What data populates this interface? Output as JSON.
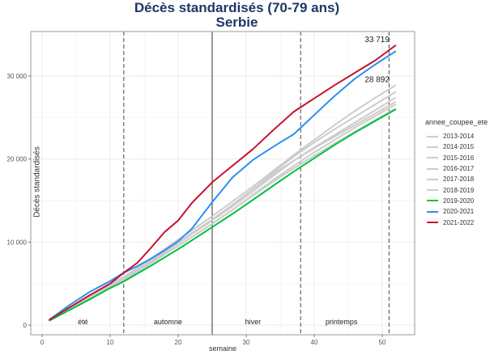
{
  "title": "Décès standardisés (70-79 ans)",
  "subtitle": "Serbie",
  "chart_data": {
    "type": "line",
    "title": "Décès standardisés (70-79 ans)",
    "subtitle": "Serbie",
    "xlabel": "semaine",
    "ylabel": "Décès standardisés",
    "xlim": [
      -1,
      55
    ],
    "ylim": [
      -1400,
      35000
    ],
    "x_ticks": [
      0,
      10,
      20,
      30,
      40,
      50
    ],
    "x_tick_labels": [
      "0",
      "10",
      "20",
      "30",
      "40",
      "50"
    ],
    "y_ticks": [
      0,
      10000,
      20000,
      30000
    ],
    "y_tick_labels": [
      "0",
      "10 000",
      "20 000",
      "30 000"
    ],
    "grid": true,
    "legend_position": "right",
    "legend_title": "annee_coupee_ete",
    "vertical_lines": [
      {
        "x": 12,
        "style": "dashed"
      },
      {
        "x": 25,
        "style": "solid"
      },
      {
        "x": 38,
        "style": "dashed"
      },
      {
        "x": 51,
        "style": "dashed"
      }
    ],
    "season_labels": [
      {
        "text": "été",
        "x": 6
      },
      {
        "text": "automne",
        "x": 18.5
      },
      {
        "text": "hiver",
        "x": 31
      },
      {
        "text": "printemps",
        "x": 44
      }
    ],
    "annotations": [
      {
        "text": "33 719",
        "x": 49,
        "y": 33719
      },
      {
        "text": "28 892",
        "x": 49,
        "y": 28892
      }
    ],
    "x": [
      1,
      4,
      7,
      10,
      12,
      14,
      16,
      18,
      20,
      22,
      25,
      28,
      31,
      34,
      37,
      40,
      43,
      46,
      49,
      52
    ],
    "series": [
      {
        "name": "2013-2014",
        "color": "#cccccc",
        "values": [
          550,
          2000,
          3500,
          5000,
          5800,
          6900,
          8000,
          9150,
          10300,
          11400,
          13100,
          14900,
          16700,
          18600,
          20500,
          22300,
          24100,
          25800,
          27400,
          28900
        ]
      },
      {
        "name": "2014-2015",
        "color": "#cccccc",
        "values": [
          550,
          1950,
          3400,
          4850,
          5650,
          6700,
          7750,
          8850,
          9950,
          11050,
          12700,
          14500,
          16400,
          18400,
          20300,
          22000,
          23600,
          25100,
          26600,
          28100
        ]
      },
      {
        "name": "2015-2016",
        "color": "#cccccc",
        "values": [
          550,
          1950,
          3350,
          4800,
          5600,
          6650,
          7700,
          8750,
          9850,
          10950,
          12600,
          14300,
          16100,
          18000,
          19800,
          21400,
          22900,
          24400,
          25900,
          27400
        ]
      },
      {
        "name": "2016-2017",
        "color": "#cccccc",
        "values": [
          550,
          1900,
          3300,
          4750,
          5550,
          6600,
          7650,
          8750,
          9850,
          11000,
          12700,
          14500,
          16400,
          18200,
          19800,
          21300,
          22700,
          24100,
          25500,
          26900
        ]
      },
      {
        "name": "2017-2018",
        "color": "#cccccc",
        "values": [
          550,
          1900,
          3250,
          4650,
          5450,
          6450,
          7450,
          8500,
          9550,
          10600,
          12200,
          13900,
          15700,
          17500,
          19200,
          20800,
          22300,
          23800,
          25200,
          26600
        ]
      },
      {
        "name": "2018-2019",
        "color": "#cccccc",
        "values": [
          550,
          1900,
          3250,
          4650,
          5450,
          6450,
          7450,
          8500,
          9550,
          10600,
          12200,
          13900,
          15600,
          17300,
          18900,
          20400,
          21900,
          23300,
          24700,
          26100
        ]
      },
      {
        "name": "2019-2020",
        "color": "#00c040",
        "values": [
          500,
          1800,
          3100,
          4450,
          5250,
          6200,
          7150,
          8150,
          9150,
          10200,
          11800,
          13400,
          15100,
          16800,
          18500,
          20100,
          21700,
          23200,
          24600,
          26000
        ]
      },
      {
        "name": "2020-2021",
        "color": "#2a8ff0",
        "values": [
          600,
          2400,
          4000,
          5300,
          6300,
          7100,
          8000,
          9000,
          10100,
          11600,
          14800,
          17800,
          19900,
          21500,
          23000,
          25300,
          27600,
          29700,
          31400,
          33000
        ]
      },
      {
        "name": "2021-2022",
        "color": "#c8102e",
        "values": [
          600,
          2100,
          3600,
          5000,
          6300,
          7500,
          9300,
          11200,
          12600,
          14700,
          17200,
          19200,
          21200,
          23500,
          25700,
          27300,
          28900,
          30400,
          31900,
          33719
        ]
      }
    ]
  },
  "legend": {
    "title": "annee_coupee_ete",
    "items": [
      {
        "label": "2013-2014",
        "color": "#cccccc"
      },
      {
        "label": "2014-2015",
        "color": "#cccccc"
      },
      {
        "label": "2015-2016",
        "color": "#cccccc"
      },
      {
        "label": "2016-2017",
        "color": "#cccccc"
      },
      {
        "label": "2017-2018",
        "color": "#cccccc"
      },
      {
        "label": "2018-2019",
        "color": "#cccccc"
      },
      {
        "label": "2019-2020",
        "color": "#00c040"
      },
      {
        "label": "2020-2021",
        "color": "#2a8ff0"
      },
      {
        "label": "2021-2022",
        "color": "#c8102e"
      }
    ]
  }
}
